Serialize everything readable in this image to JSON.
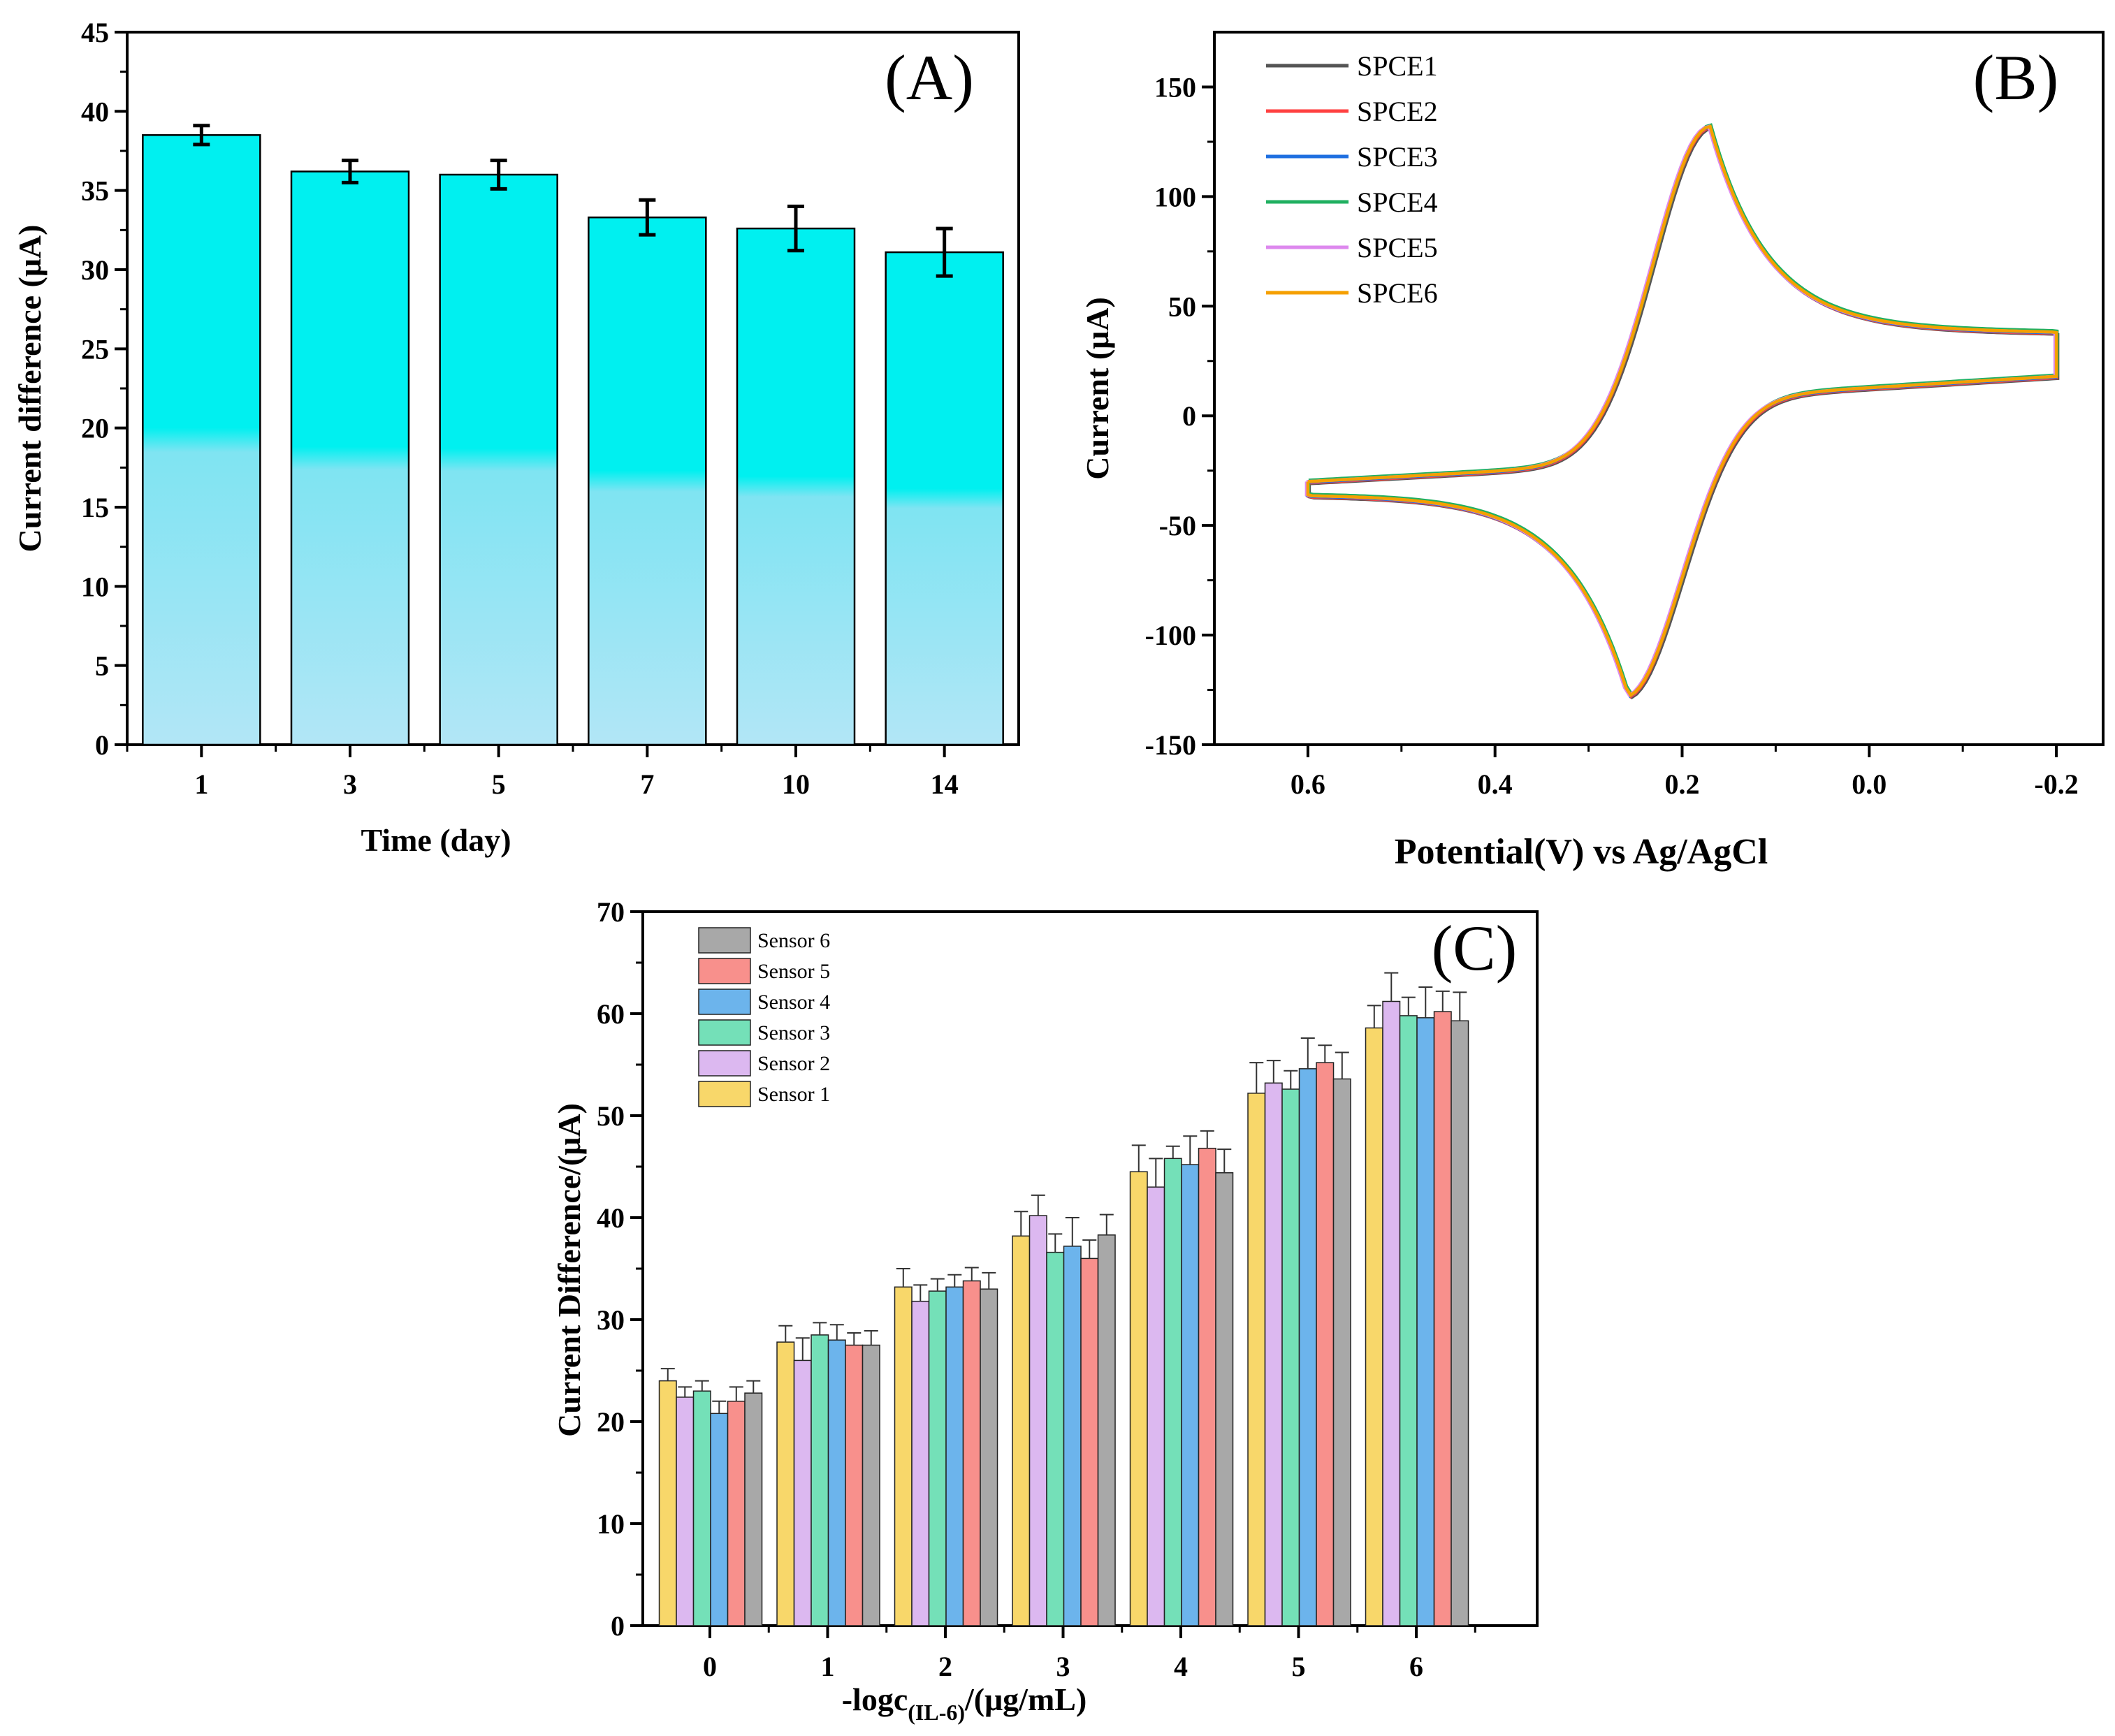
{
  "chart_data": [
    {
      "panel": "(A)",
      "type": "bar",
      "xlabel": "Time (day)",
      "ylabel": "Current difference (μA)",
      "categories": [
        "1",
        "3",
        "5",
        "7",
        "10",
        "14"
      ],
      "values": [
        38.5,
        36.2,
        36.0,
        33.3,
        32.6,
        31.1
      ],
      "errors": [
        0.6,
        0.7,
        0.9,
        1.1,
        1.4,
        1.5
      ],
      "ylim": [
        0,
        45
      ],
      "yticks": [
        "0",
        "5",
        "10",
        "15",
        "20",
        "25",
        "30",
        "35",
        "40",
        "45"
      ],
      "bar_color": "#00f0f0"
    },
    {
      "panel": "(B)",
      "type": "line",
      "xlabel": "Potential(V) vs Ag/AgCl",
      "ylabel": "Current (μA)",
      "xlim": [
        0.7,
        -0.25
      ],
      "ylim": [
        -150,
        175
      ],
      "xticks": [
        "0.6",
        "0.4",
        "0.2",
        "0.0",
        "-0.2"
      ],
      "yticks": [
        "-150",
        "-100",
        "-50",
        "0",
        "50",
        "100",
        "150"
      ],
      "series": [
        {
          "name": "SPCE1",
          "color": "#555555"
        },
        {
          "name": "SPCE2",
          "color": "#ff4040"
        },
        {
          "name": "SPCE3",
          "color": "#1e6fe0"
        },
        {
          "name": "SPCE4",
          "color": "#20b060"
        },
        {
          "name": "SPCE5",
          "color": "#dd88ee"
        },
        {
          "name": "SPCE6",
          "color": "#f5a000"
        }
      ],
      "curve": {
        "oxidation_peak": {
          "potential": 0.17,
          "current": 132
        },
        "reduction_peak": {
          "potential": 0.26,
          "current": -124
        },
        "start": {
          "potential": 0.6,
          "current": -30
        },
        "vertex": {
          "potential": -0.2,
          "current": 38
        }
      }
    },
    {
      "panel": "(C)",
      "type": "bar",
      "xlabel": "-logc(IL-6)/(μg/mL)",
      "xlabel_main": "-logc",
      "xlabel_sub": "(IL-6)",
      "xlabel_tail": "/(μg/mL)",
      "ylabel": "Current Difference/(μA)",
      "categories": [
        "0",
        "1",
        "2",
        "3",
        "4",
        "5",
        "6"
      ],
      "ylim": [
        0,
        70
      ],
      "yticks": [
        "0",
        "10",
        "20",
        "30",
        "40",
        "50",
        "60",
        "70"
      ],
      "series": [
        {
          "name": "Sensor 1",
          "color": "#f8d76a",
          "values": [
            24.0,
            27.8,
            33.2,
            38.2,
            44.5,
            52.2,
            58.6
          ],
          "errors": [
            1.2,
            1.6,
            1.8,
            2.4,
            2.6,
            3.0,
            2.2
          ]
        },
        {
          "name": "Sensor 2",
          "color": "#dcb8f0",
          "values": [
            22.4,
            26.0,
            31.8,
            40.2,
            43.0,
            53.2,
            61.2
          ],
          "errors": [
            1.0,
            2.2,
            1.6,
            2.0,
            2.8,
            2.2,
            2.8
          ]
        },
        {
          "name": "Sensor 3",
          "color": "#74e0b8",
          "values": [
            23.0,
            28.5,
            32.8,
            36.6,
            45.8,
            52.6,
            59.8
          ],
          "errors": [
            1.0,
            1.2,
            1.2,
            1.8,
            1.2,
            1.8,
            1.8
          ]
        },
        {
          "name": "Sensor 4",
          "color": "#6cb4ec",
          "values": [
            20.8,
            28.0,
            33.2,
            37.2,
            45.2,
            54.6,
            59.6
          ],
          "errors": [
            1.2,
            1.5,
            1.2,
            2.8,
            2.8,
            3.0,
            3.0
          ]
        },
        {
          "name": "Sensor 5",
          "color": "#f8908c",
          "values": [
            22.0,
            27.5,
            33.8,
            36.0,
            46.8,
            55.2,
            60.2
          ],
          "errors": [
            1.4,
            1.2,
            1.3,
            1.8,
            1.7,
            1.7,
            2.0
          ]
        },
        {
          "name": "Sensor 6",
          "color": "#a8a8a8",
          "values": [
            22.8,
            27.5,
            33.0,
            38.3,
            44.4,
            53.6,
            59.3
          ],
          "errors": [
            1.2,
            1.4,
            1.6,
            2.0,
            2.3,
            2.6,
            2.8
          ]
        }
      ]
    }
  ]
}
